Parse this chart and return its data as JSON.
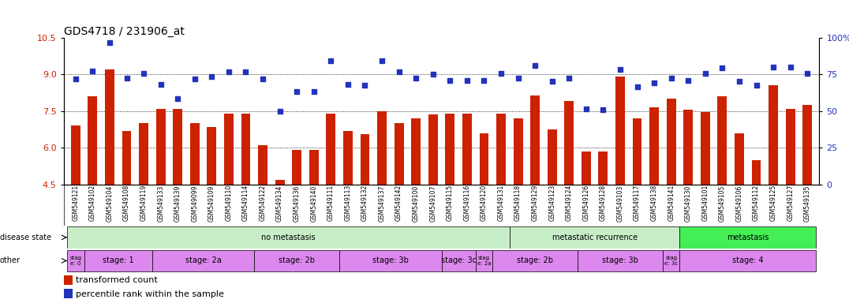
{
  "title": "GDS4718 / 231906_at",
  "samples": [
    "GSM549121",
    "GSM549102",
    "GSM549104",
    "GSM549108",
    "GSM549119",
    "GSM549133",
    "GSM549139",
    "GSM549099",
    "GSM549109",
    "GSM549110",
    "GSM549114",
    "GSM549122",
    "GSM549134",
    "GSM549136",
    "GSM549140",
    "GSM549111",
    "GSM549113",
    "GSM549132",
    "GSM549137",
    "GSM549142",
    "GSM549100",
    "GSM549107",
    "GSM549115",
    "GSM549116",
    "GSM549120",
    "GSM549131",
    "GSM549118",
    "GSM549129",
    "GSM549123",
    "GSM549124",
    "GSM549126",
    "GSM549128",
    "GSM549103",
    "GSM549117",
    "GSM549138",
    "GSM549141",
    "GSM549130",
    "GSM549101",
    "GSM549105",
    "GSM549106",
    "GSM549112",
    "GSM549125",
    "GSM549127",
    "GSM549135"
  ],
  "bar_values": [
    6.9,
    8.1,
    9.2,
    6.7,
    7.0,
    7.6,
    7.6,
    7.0,
    6.85,
    7.4,
    7.4,
    6.1,
    4.7,
    5.9,
    5.9,
    7.4,
    6.7,
    6.55,
    7.5,
    7.0,
    7.2,
    7.35,
    7.4,
    7.4,
    6.6,
    7.4,
    7.2,
    8.15,
    6.75,
    7.9,
    5.85,
    5.85,
    8.9,
    7.2,
    7.65,
    8.0,
    7.55,
    7.45,
    8.1,
    6.6,
    5.5,
    8.55,
    7.6,
    7.75
  ],
  "scatter_values": [
    8.8,
    9.15,
    10.3,
    8.85,
    9.05,
    8.6,
    8.0,
    8.8,
    8.9,
    9.1,
    9.1,
    8.8,
    7.5,
    8.3,
    8.3,
    9.55,
    8.6,
    8.55,
    9.55,
    9.1,
    8.85,
    9.0,
    8.75,
    8.75,
    8.75,
    9.05,
    8.85,
    9.35,
    8.7,
    8.85,
    7.6,
    7.55,
    9.2,
    8.5,
    8.65,
    8.85,
    8.75,
    9.05,
    9.25,
    8.7,
    8.55,
    9.3,
    9.3,
    9.05
  ],
  "bar_color": "#cc2200",
  "scatter_color": "#2233bb",
  "background_color": "#ffffff",
  "ylim_left": [
    4.5,
    10.5
  ],
  "ylim_right": [
    0,
    100
  ],
  "yticks_left": [
    4.5,
    6.0,
    7.5,
    9.0,
    10.5
  ],
  "yticks_right": [
    0,
    25,
    50,
    75,
    100
  ],
  "ylabel_left_color": "#cc2200",
  "ylabel_right_color": "#2233bb",
  "disease_segs": [
    {
      "label": "no metastasis",
      "start": 0,
      "end": 26,
      "color": "#c8eec8"
    },
    {
      "label": "metastatic recurrence",
      "start": 26,
      "end": 36,
      "color": "#c8eec8"
    },
    {
      "label": "metastasis",
      "start": 36,
      "end": 44,
      "color": "#44ee55"
    }
  ],
  "stage_segs": [
    {
      "label": "stag\ne: 0",
      "start": 0,
      "end": 1
    },
    {
      "label": "stage: 1",
      "start": 1,
      "end": 5
    },
    {
      "label": "stage: 2a",
      "start": 5,
      "end": 11
    },
    {
      "label": "stage: 2b",
      "start": 11,
      "end": 16
    },
    {
      "label": "stage: 3b",
      "start": 16,
      "end": 22
    },
    {
      "label": "stage: 3c",
      "start": 22,
      "end": 24
    },
    {
      "label": "stag\ne: 2a",
      "start": 24,
      "end": 25
    },
    {
      "label": "stage: 2b",
      "start": 25,
      "end": 30
    },
    {
      "label": "stage: 3b",
      "start": 30,
      "end": 35
    },
    {
      "label": "stag\ne: 3c",
      "start": 35,
      "end": 36
    },
    {
      "label": "stage: 4",
      "start": 36,
      "end": 44
    }
  ],
  "stage_color": "#dd88ee",
  "disease_state_label": "disease state",
  "other_label": "other",
  "legend_bar_label": "transformed count",
  "legend_scatter_label": "percentile rank within the sample",
  "title_fontsize": 10,
  "tick_fontsize": 7,
  "sample_fontsize": 5.5
}
